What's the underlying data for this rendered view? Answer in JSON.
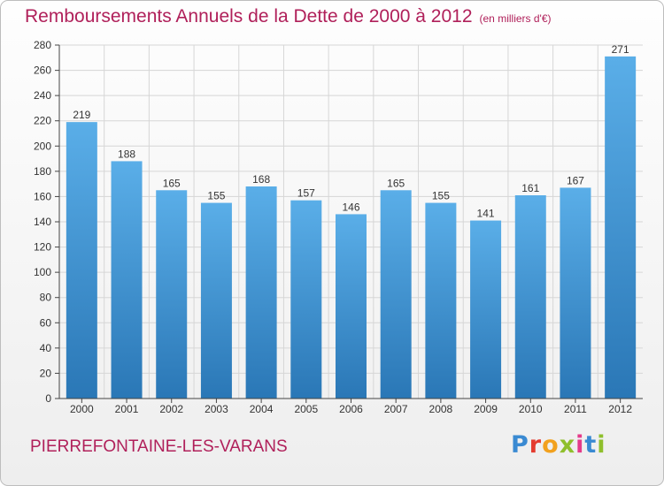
{
  "title": "Remboursements Annuels de la Dette de 2000 à 2012",
  "subtitle": "(en milliers d'€)",
  "city": "PIERREFONTAINE-LES-VARANS",
  "logo": "Proxiti",
  "colors": {
    "bar_light": "#5aaee8",
    "bar_dark": "#2a77b6",
    "title": "#b0205a",
    "grid": "#d6d6d6"
  },
  "chart_data": {
    "type": "bar",
    "title": "Remboursements Annuels de la Dette de 2000 à 2012",
    "unit": "(en milliers d'€)",
    "categories": [
      "2000",
      "2001",
      "2002",
      "2003",
      "2004",
      "2005",
      "2006",
      "2007",
      "2008",
      "2009",
      "2010",
      "2011",
      "2012"
    ],
    "values": [
      219,
      188,
      165,
      155,
      168,
      157,
      146,
      165,
      155,
      141,
      161,
      167,
      271
    ],
    "ylim": [
      0,
      280
    ],
    "yticks": [
      0,
      20,
      40,
      60,
      80,
      100,
      120,
      140,
      160,
      180,
      200,
      220,
      240,
      260,
      280
    ],
    "grid": true,
    "legend": "none"
  }
}
